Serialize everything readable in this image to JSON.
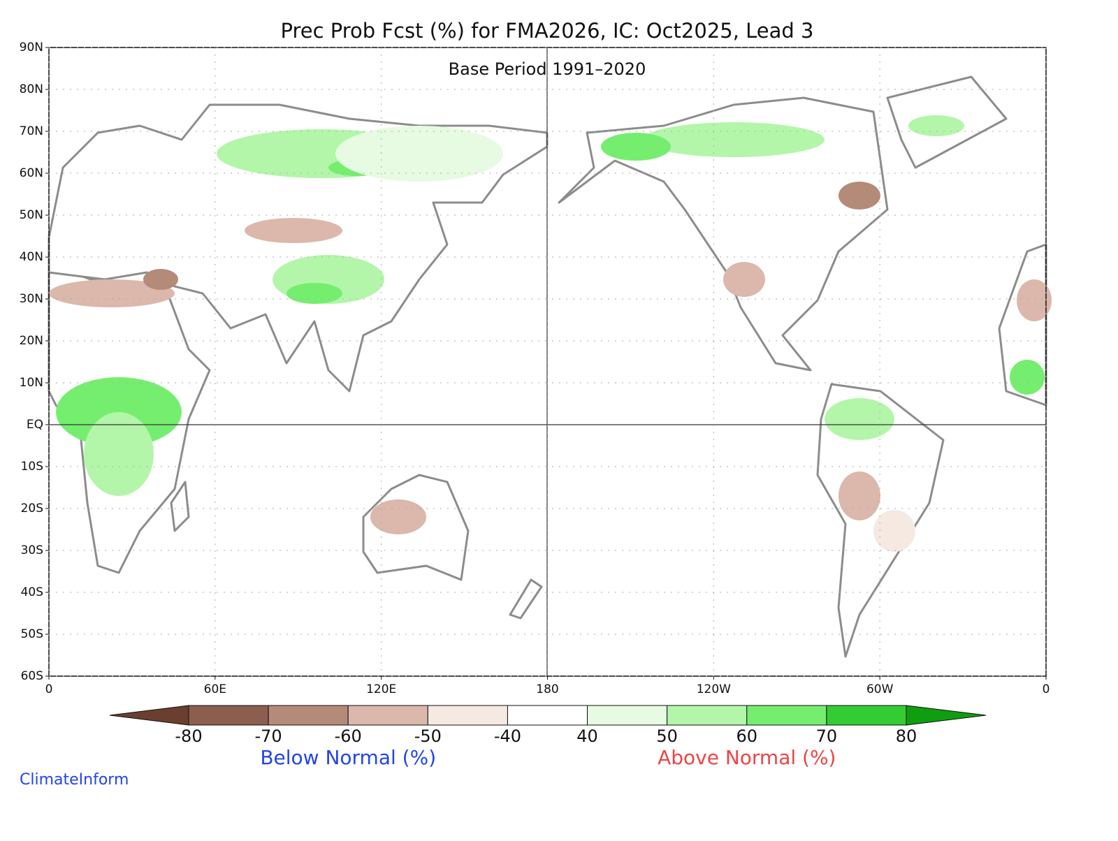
{
  "title": "Prec Prob Fcst (%) for FMA2026, IC: Oct2025, Lead 3",
  "subtitle": "Base Period 1991–2020",
  "lat_ticks": [
    {
      "value": 90,
      "label": "90N"
    },
    {
      "value": 80,
      "label": "80N"
    },
    {
      "value": 70,
      "label": "70N"
    },
    {
      "value": 60,
      "label": "60N"
    },
    {
      "value": 50,
      "label": "50N"
    },
    {
      "value": 40,
      "label": "40N"
    },
    {
      "value": 30,
      "label": "30N"
    },
    {
      "value": 20,
      "label": "20N"
    },
    {
      "value": 10,
      "label": "10N"
    },
    {
      "value": 0,
      "label": "EQ"
    },
    {
      "value": -10,
      "label": "10S"
    },
    {
      "value": -20,
      "label": "20S"
    },
    {
      "value": -30,
      "label": "30S"
    },
    {
      "value": -40,
      "label": "40S"
    },
    {
      "value": -50,
      "label": "50S"
    },
    {
      "value": -60,
      "label": "60S"
    }
  ],
  "lon_ticks": [
    0,
    {
      "value": 60,
      "label": "60E"
    },
    {
      "value": 120,
      "label": "120E"
    },
    180,
    {
      "value": 240,
      "label": "120W"
    },
    {
      "value": 300,
      "label": "60W"
    },
    {
      "value": 360,
      "label": "0"
    }
  ],
  "colorbar": {
    "levels": [
      -80,
      -70,
      -60,
      -50,
      -40,
      40,
      50,
      60,
      70,
      80
    ],
    "colors": [
      "#6b3f2f",
      "#8c5e4e",
      "#b48a78",
      "#dbb8ab",
      "#f5e9e2",
      "#ffffff",
      "#e6fbe1",
      "#b3f6a9",
      "#75ee6f",
      "#33cc33",
      "#0f9e0f"
    ]
  },
  "below_label": "Below Normal (%)",
  "above_label": "Above Normal (%)",
  "credit": "ClimateInform"
}
